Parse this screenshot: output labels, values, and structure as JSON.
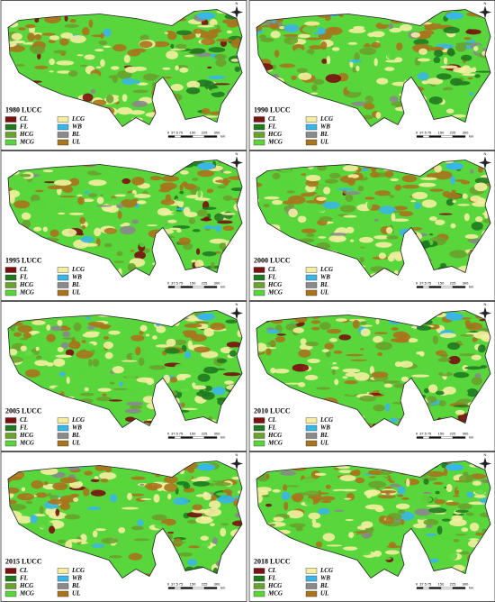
{
  "panels": [
    {
      "title": "1980  LUCC"
    },
    {
      "title": "1990  LUCC"
    },
    {
      "title": "1995  LUCC"
    },
    {
      "title": "2000  LUCC"
    },
    {
      "title": "2005  LUCC"
    },
    {
      "title": "2010  LUCC"
    },
    {
      "title": "2015  LUCC"
    },
    {
      "title": "2018  LUCC"
    }
  ],
  "legend": {
    "items": [
      {
        "code": "CL",
        "color": "#7a1010"
      },
      {
        "code": "FL",
        "color": "#1f7a1f"
      },
      {
        "code": "HCG",
        "color": "#6aa22c"
      },
      {
        "code": "MCG",
        "color": "#58d63c"
      },
      {
        "code": "LCG",
        "color": "#f4eea0"
      },
      {
        "code": "WB",
        "color": "#39b6e8"
      },
      {
        "code": "BL",
        "color": "#8a8a8a"
      },
      {
        "code": "UL",
        "color": "#a8741c"
      }
    ]
  },
  "scale": {
    "labels": [
      "0",
      "37.5",
      "75",
      "150",
      "225",
      "300"
    ],
    "unit": "km"
  },
  "compass": {
    "north": "N"
  }
}
